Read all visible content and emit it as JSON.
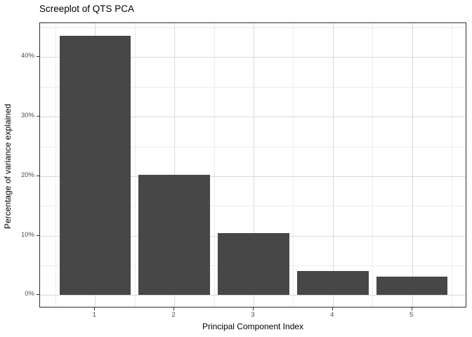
{
  "chart_data": {
    "type": "bar",
    "title": "Screeplot of QTS PCA",
    "xlabel": "Principal Component Index",
    "ylabel": "Percentage of variance explained",
    "categories": [
      "1",
      "2",
      "3",
      "4",
      "5"
    ],
    "values": [
      43.6,
      20.2,
      10.4,
      4.0,
      3.1
    ],
    "value_unit": "%",
    "bar_width": 0.9,
    "xlim": [
      0.305,
      5.695
    ],
    "ylim": [
      -2.2,
      45.7
    ],
    "x_major_ticks": [
      1,
      2,
      3,
      4,
      5
    ],
    "x_tick_labels": [
      "1",
      "2",
      "3",
      "4",
      "5"
    ],
    "x_minor_gridlines": [
      0.5,
      1.5,
      2.5,
      3.5,
      4.5,
      5.5
    ],
    "y_major_ticks": [
      0,
      10,
      20,
      30,
      40
    ],
    "y_tick_labels": [
      "0%",
      "10%",
      "20%",
      "30%",
      "40%"
    ],
    "y_minor_gridlines": [
      5,
      15,
      25,
      35,
      45
    ],
    "grid": "on",
    "legend": "none",
    "colors": {
      "bar_fill": "#474747",
      "panel_background": "#ffffff",
      "panel_border": "#2e2e2e",
      "grid_major": "#d9d9d9",
      "grid_minor": "#ececec",
      "tick_mark": "#333333",
      "tick_label": "#4d4d4d",
      "title_text": "#000000"
    }
  }
}
